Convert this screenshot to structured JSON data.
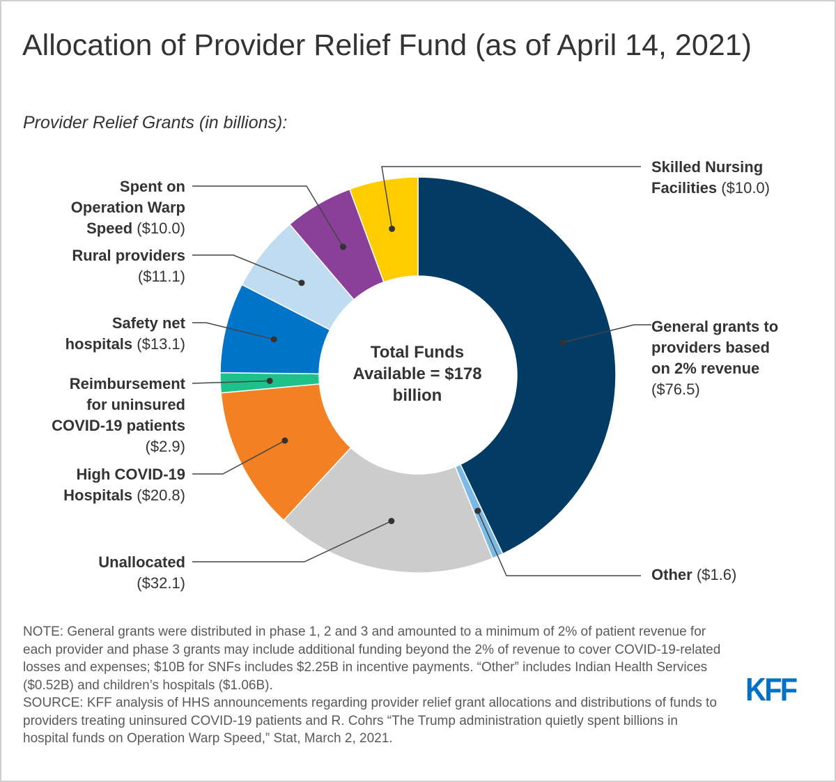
{
  "title": "Allocation of Provider Relief Fund (as of April 14, 2021)",
  "subtitle": "Provider Relief Grants (in billions):",
  "center_label": [
    "Total Funds",
    "Available = $178",
    "billion"
  ],
  "notes": "NOTE: General grants were distributed in phase 1, 2 and 3 and amounted to a minimum of 2% of patient revenue for each provider and phase 3 grants may include additional funding beyond the 2% of revenue to cover COVID-19-related losses and expenses; $10B for SNFs includes $2.25B in incentive payments. “Other” includes Indian Health Services ($0.52B) and children’s hospitals ($1.06B).",
  "source": "SOURCE: KFF analysis of HHS announcements regarding provider relief grant allocations and distributions of funds to providers treating uninsured COVID-19 patients and R. Cohrs “The Trump administration quietly spent billions in hospital funds on Operation Warp Speed,” Stat, March 2, 2021.",
  "logo": "KFF",
  "chart_data": {
    "type": "pie",
    "variant": "donut",
    "title": "Allocation of Provider Relief Fund (as of April 14, 2021)",
    "subtitle": "Provider Relief Grants (in billions):",
    "unit": "billions USD",
    "total": 178,
    "slices": [
      {
        "name": "General grants to providers based on 2% revenue",
        "value": 76.5,
        "value_label": "($76.5)",
        "color": "#023b64"
      },
      {
        "name": "Other",
        "value": 1.6,
        "value_label": "($1.6)",
        "color": "#7cb9e4"
      },
      {
        "name": "Unallocated",
        "value": 32.1,
        "value_label": "($32.1)",
        "color": "#cccccc"
      },
      {
        "name": "High COVID-19 Hospitals",
        "value": 20.8,
        "value_label": "($20.8)",
        "color": "#f48024"
      },
      {
        "name": "Reimbursement for uninsured COVID-19 patients",
        "value": 2.9,
        "value_label": "($2.9)",
        "color": "#1ec18a"
      },
      {
        "name": "Safety net hospitals",
        "value": 13.1,
        "value_label": "($13.1)",
        "color": "#0074c8"
      },
      {
        "name": "Rural providers",
        "value": 11.1,
        "value_label": "($11.1)",
        "color": "#bfdcf0"
      },
      {
        "name": "Spent on Operation Warp Speed",
        "value": 10.0,
        "value_label": "($10.0)",
        "color": "#8a3f98"
      },
      {
        "name": "Skilled Nursing Facilities",
        "value": 10.0,
        "value_label": "($10.0)",
        "color": "#ffcc00"
      }
    ],
    "labels": {
      "general": {
        "l1": "General grants to",
        "l2": "providers based",
        "l3": "on 2% revenue",
        "v": "($76.5)"
      },
      "other": {
        "l1": "Other",
        "v": "($1.6)"
      },
      "unallocated": {
        "l1": "Unallocated",
        "v": "($32.1)"
      },
      "high": {
        "l1": "High COVID-19",
        "l2": "Hospitals",
        "v": "($20.8)"
      },
      "reimb": {
        "l1": "Reimbursement",
        "l2": "for uninsured",
        "l3": "COVID-19 patients",
        "v": "($2.9)"
      },
      "safety": {
        "l1": "Safety net",
        "l2": "hospitals",
        "v": "($13.1)"
      },
      "rural": {
        "l1": "Rural providers",
        "v": "($11.1)"
      },
      "warp": {
        "l1": "Spent on",
        "l2": "Operation Warp",
        "l3": "Speed",
        "v": "($10.0)"
      },
      "snf": {
        "l1": "Skilled Nursing",
        "l2": "Facilities",
        "v": "($10.0)"
      }
    }
  }
}
